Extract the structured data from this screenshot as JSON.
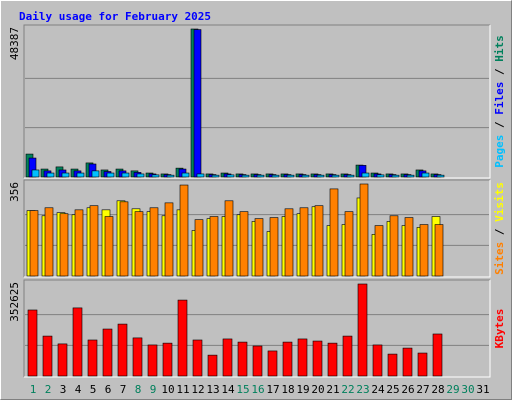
{
  "chart_data": [
    {
      "type": "bar",
      "title": "Daily usage for February 2025",
      "ylim": [
        0,
        48387
      ],
      "yticks": [
        48387
      ],
      "grid": true,
      "legend_separator": " / ",
      "series": [
        {
          "name": "Hits",
          "color": "#00805c",
          "values": [
            7500,
            2600,
            3300,
            2600,
            4600,
            2300,
            2600,
            2000,
            1300,
            1000,
            2900,
            48387,
            1000,
            1300,
            1000,
            1000,
            1000,
            1000,
            1000,
            1000,
            1000,
            1000,
            3900,
            1300,
            1000,
            1000,
            2300,
            1000,
            null,
            null,
            null
          ]
        },
        {
          "name": "Files",
          "color": "#0000ff",
          "values": [
            6200,
            2000,
            2300,
            2000,
            4250,
            1800,
            2000,
            1500,
            1000,
            800,
            2600,
            48200,
            800,
            1000,
            800,
            800,
            800,
            800,
            800,
            800,
            800,
            800,
            3800,
            1000,
            800,
            800,
            2000,
            800,
            null,
            null,
            null
          ]
        },
        {
          "name": "Pages",
          "color": "#00c0ff",
          "values": [
            2300,
            1300,
            1300,
            1300,
            2000,
            1300,
            1300,
            1000,
            700,
            600,
            1300,
            1000,
            600,
            700,
            600,
            600,
            600,
            600,
            600,
            600,
            600,
            600,
            1300,
            700,
            600,
            600,
            1300,
            600,
            null,
            null,
            null
          ]
        }
      ]
    },
    {
      "type": "bar",
      "ylim": [
        0,
        356
      ],
      "yticks": [
        356
      ],
      "grid": true,
      "legend_separator": " / ",
      "series": [
        {
          "name": "Visits",
          "color": "#ffff00",
          "values": [
            253,
            233,
            245,
            237,
            264,
            256,
            291,
            260,
            249,
            233,
            256,
            176,
            222,
            230,
            237,
            211,
            172,
            230,
            241,
            268,
            195,
            199,
            302,
            161,
            211,
            195,
            188,
            230,
            null,
            null,
            null
          ]
        },
        {
          "name": "Sites",
          "color": "#ff8000",
          "values": [
            253,
            264,
            241,
            256,
            272,
            230,
            287,
            249,
            264,
            283,
            352,
            218,
            230,
            291,
            249,
            222,
            226,
            260,
            264,
            272,
            337,
            249,
            356,
            195,
            233,
            226,
            199,
            199,
            null,
            null,
            null
          ]
        }
      ]
    },
    {
      "type": "bar",
      "ylim": [
        0,
        352625
      ],
      "yticks": [
        352625
      ],
      "grid": true,
      "categories": [
        "1",
        "2",
        "3",
        "4",
        "5",
        "6",
        "7",
        "8",
        "9",
        "10",
        "11",
        "12",
        "13",
        "14",
        "15",
        "16",
        "17",
        "18",
        "19",
        "20",
        "21",
        "22",
        "23",
        "24",
        "25",
        "26",
        "27",
        "28",
        "29",
        "30",
        "31"
      ],
      "category_colors": [
        "#00805c",
        "#00805c",
        "#000000",
        "#000000",
        "#000000",
        "#000000",
        "#000000",
        "#00805c",
        "#00805c",
        "#000000",
        "#000000",
        "#000000",
        "#000000",
        "#000000",
        "#00805c",
        "#00805c",
        "#000000",
        "#000000",
        "#000000",
        "#000000",
        "#000000",
        "#00805c",
        "#00805c",
        "#000000",
        "#000000",
        "#000000",
        "#000000",
        "#000000",
        "#00805c",
        "#00805c",
        "#000000"
      ],
      "series": [
        {
          "name": "KBytes",
          "color": "#ff0000",
          "values": [
            253000,
            153000,
            123000,
            261000,
            138000,
            180000,
            199000,
            146000,
            119000,
            126000,
            291000,
            138000,
            80000,
            142000,
            130000,
            115000,
            96000,
            130000,
            142000,
            134000,
            126000,
            153000,
            352625,
            119000,
            84000,
            107000,
            88000,
            161000,
            null,
            null,
            null
          ]
        }
      ]
    }
  ]
}
